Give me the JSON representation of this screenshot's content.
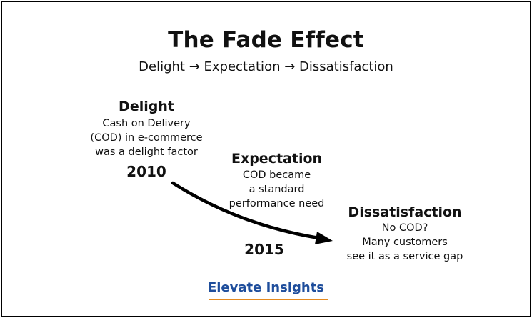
{
  "title": "The Fade Effect",
  "subtitle": "Delight → Expectation → Dissatisfaction",
  "stages": [
    {
      "title": "Delight",
      "lines": [
        "Cash on Delivery",
        "(COD) in e-commerce",
        "was a delight factor"
      ],
      "year": "2010"
    },
    {
      "title": "Expectation",
      "lines": [
        "COD became",
        "a standard",
        "performance need"
      ]
    },
    {
      "title": "Dissatisfaction",
      "lines": [
        "No COD?",
        "Many customers",
        "see it as a service gap"
      ],
      "year": "2015"
    }
  ],
  "brand": "Elevate Insights",
  "colors": {
    "brand": "#1f4e9c",
    "accent_line": "#e58a1f",
    "arrow": "#000000"
  }
}
